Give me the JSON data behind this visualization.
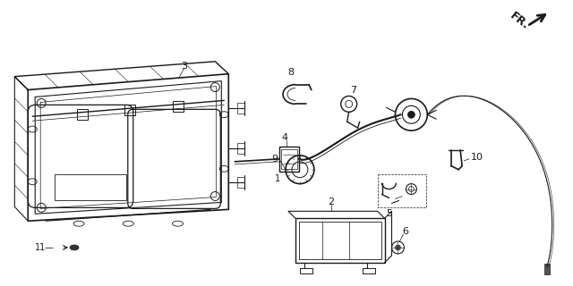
{
  "background_color": "#ffffff",
  "line_color": "#1a1a1a",
  "fig_width": 6.4,
  "fig_height": 3.2,
  "dpi": 100,
  "fr_text": "FR."
}
